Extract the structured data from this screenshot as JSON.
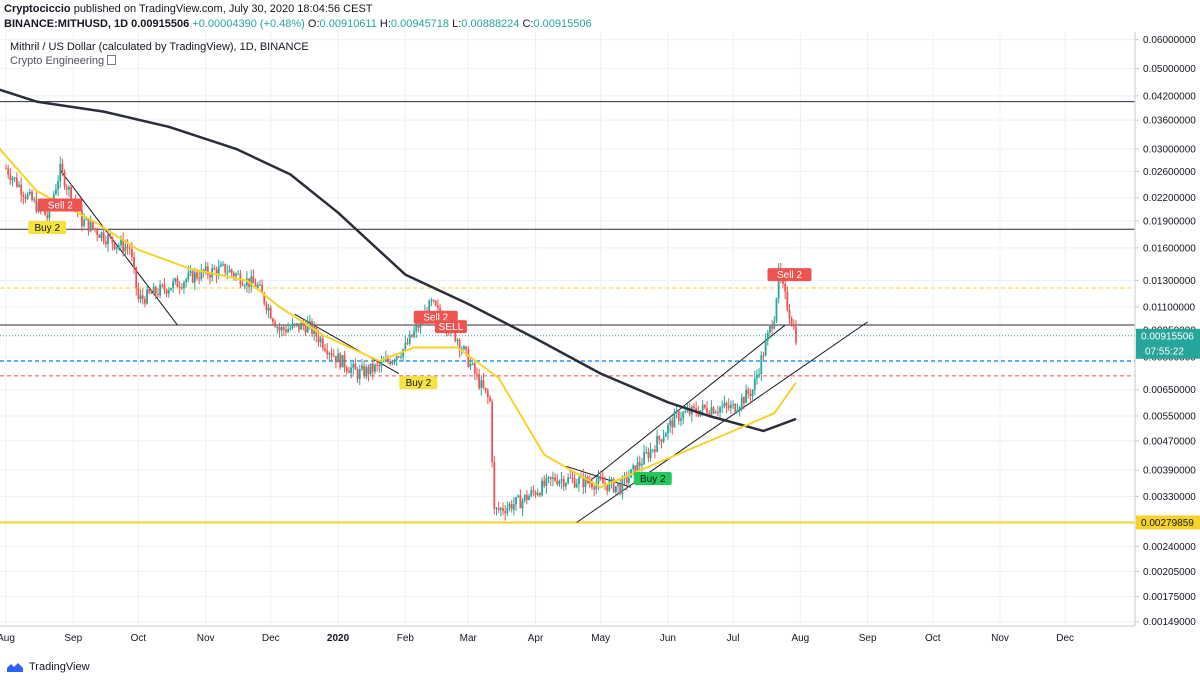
{
  "header": {
    "publisher": "Cryptociccio",
    "published_text": " published on TradingView.com, July 30, 2020 18:04:56 CEST",
    "symbol": "BINANCE:MITHUSD, 1D",
    "price": "0.00915506",
    "change": "+0.00004390 (+0.48%)",
    "o_label": "O:",
    "o_value": "0.00910611",
    "h_label": "H:",
    "h_value": "0.00945718",
    "l_label": "L:",
    "l_value": "0.00888224",
    "c_label": "C:",
    "c_value": "0.00915506"
  },
  "legend": {
    "title": "Mithril / US Dollar (calculated by TradingView), 1D, BINANCE",
    "indicator": "Crypto Engineering"
  },
  "footer": {
    "brand": "TradingView"
  },
  "colors": {
    "up": "#26a69a",
    "down": "#ef5350",
    "ma_fast": "#f5d327",
    "ma_slow": "#2a2e39",
    "grid": "#eef0f3",
    "buy": "#f5e23c",
    "buy_green": "#21c85a",
    "sell": "#ef5350",
    "last_price": "#26a69a",
    "support": "#f7d32a"
  },
  "chart_data": {
    "type": "candlestick",
    "x_axis_labels": [
      "Aug",
      "Sep",
      "Oct",
      "Nov",
      "Dec",
      "2020",
      "Feb",
      "Mar",
      "Apr",
      "May",
      "Jun",
      "Jul",
      "Aug",
      "Sep",
      "Oct",
      "Nov",
      "Dec"
    ],
    "x_axis_bold": [
      "2020"
    ],
    "y_axis": {
      "scale": "log",
      "range": [
        0.00145,
        0.063
      ],
      "ticks": [
        "0.06000000",
        "0.05000000",
        "0.04200000",
        "0.03600000",
        "0.03000000",
        "0.02600000",
        "0.02200000",
        "0.01900000",
        "0.01600000",
        "0.01300000",
        "0.01100000",
        "0.00950000",
        "0.00800000",
        "0.00650000",
        "0.00550000",
        "0.00470000",
        "0.00390000",
        "0.00330000",
        "0.00240000",
        "0.00205000",
        "0.00175000",
        "0.00149000"
      ]
    },
    "date_range": [
      "2019-08-01",
      "2020-07-30"
    ],
    "candles": [
      {
        "date": "2019-08-01",
        "close": 0.0265
      },
      {
        "date": "2019-08-10",
        "close": 0.0225
      },
      {
        "date": "2019-08-20",
        "close": 0.0195
      },
      {
        "date": "2019-08-26",
        "close": 0.0262
      },
      {
        "date": "2019-09-05",
        "close": 0.019
      },
      {
        "date": "2019-09-20",
        "close": 0.0165
      },
      {
        "date": "2019-09-27",
        "close": 0.016
      },
      {
        "date": "2019-10-01",
        "close": 0.0115
      },
      {
        "date": "2019-10-15",
        "close": 0.0125
      },
      {
        "date": "2019-10-28",
        "close": 0.0135
      },
      {
        "date": "2019-11-10",
        "close": 0.014
      },
      {
        "date": "2019-11-25",
        "close": 0.0125
      },
      {
        "date": "2019-12-05",
        "close": 0.0095
      },
      {
        "date": "2019-12-18",
        "close": 0.0098
      },
      {
        "date": "2019-12-31",
        "close": 0.008
      },
      {
        "date": "2020-01-10",
        "close": 0.0072
      },
      {
        "date": "2020-01-20",
        "close": 0.0075
      },
      {
        "date": "2020-02-01",
        "close": 0.0085
      },
      {
        "date": "2020-02-13",
        "close": 0.0112
      },
      {
        "date": "2020-02-25",
        "close": 0.009
      },
      {
        "date": "2020-03-05",
        "close": 0.007
      },
      {
        "date": "2020-03-11",
        "close": 0.006
      },
      {
        "date": "2020-03-13",
        "close": 0.003
      },
      {
        "date": "2020-03-25",
        "close": 0.0032
      },
      {
        "date": "2020-04-10",
        "close": 0.0037
      },
      {
        "date": "2020-04-30",
        "close": 0.0036
      },
      {
        "date": "2020-05-10",
        "close": 0.0035
      },
      {
        "date": "2020-05-25",
        "close": 0.0045
      },
      {
        "date": "2020-06-05",
        "close": 0.0055
      },
      {
        "date": "2020-06-20",
        "close": 0.0058
      },
      {
        "date": "2020-07-01",
        "close": 0.0058
      },
      {
        "date": "2020-07-10",
        "close": 0.0065
      },
      {
        "date": "2020-07-20",
        "close": 0.0105
      },
      {
        "date": "2020-07-22",
        "close": 0.0135
      },
      {
        "date": "2020-07-30",
        "close": 0.00915506
      }
    ],
    "series": [
      {
        "values": [
          {
            "date": "2019-07-25",
            "value": 0.0445
          },
          {
            "date": "2019-08-15",
            "value": 0.0405
          },
          {
            "date": "2019-09-15",
            "value": 0.038
          },
          {
            "date": "2019-10-15",
            "value": 0.0345
          },
          {
            "date": "2019-11-15",
            "value": 0.03
          },
          {
            "date": "2019-12-10",
            "value": 0.0255
          },
          {
            "date": "2020-01-01",
            "value": 0.02
          },
          {
            "date": "2020-02-01",
            "value": 0.0135
          },
          {
            "date": "2020-03-01",
            "value": 0.0112
          },
          {
            "date": "2020-04-01",
            "value": 0.009
          },
          {
            "date": "2020-05-01",
            "value": 0.0072
          },
          {
            "date": "2020-06-01",
            "value": 0.006
          },
          {
            "date": "2020-06-20",
            "value": 0.0055
          },
          {
            "date": "2020-07-05",
            "value": 0.0052
          },
          {
            "date": "2020-07-15",
            "value": 0.005
          },
          {
            "date": "2020-07-30",
            "value": 0.0054
          }
        ]
      },
      {
        "values": [
          {
            "date": "2019-07-25",
            "value": 0.032
          },
          {
            "date": "2019-08-15",
            "value": 0.023
          },
          {
            "date": "2019-09-10",
            "value": 0.019
          },
          {
            "date": "2019-10-01",
            "value": 0.0158
          },
          {
            "date": "2019-10-25",
            "value": 0.014
          },
          {
            "date": "2019-11-20",
            "value": 0.013
          },
          {
            "date": "2019-12-05",
            "value": 0.011
          },
          {
            "date": "2019-12-25",
            "value": 0.0092
          },
          {
            "date": "2020-01-20",
            "value": 0.0078
          },
          {
            "date": "2020-02-05",
            "value": 0.0085
          },
          {
            "date": "2020-02-25",
            "value": 0.0085
          },
          {
            "date": "2020-03-15",
            "value": 0.007
          },
          {
            "date": "2020-04-05",
            "value": 0.0043
          },
          {
            "date": "2020-05-01",
            "value": 0.0035
          },
          {
            "date": "2020-06-01",
            "value": 0.0042
          },
          {
            "date": "2020-07-01",
            "value": 0.005
          },
          {
            "date": "2020-07-20",
            "value": 0.0056
          },
          {
            "date": "2020-07-30",
            "value": 0.0068
          }
        ]
      }
    ],
    "horizontal_lines": [
      {
        "value": 0.0405,
        "style": "solid",
        "color": "#2a2e39"
      },
      {
        "value": 0.018,
        "style": "solid",
        "color": "#2a2e39"
      },
      {
        "value": 0.0098,
        "style": "solid",
        "color": "#2a2e39"
      },
      {
        "value": 0.0124,
        "style": "dashed",
        "color": "#f5d327"
      },
      {
        "value": 0.00915506,
        "style": "dotted",
        "color": "#26a69a"
      },
      {
        "value": 0.0078,
        "style": "dashed",
        "color": "#2196f3"
      },
      {
        "value": 0.0071,
        "style": "dashed",
        "color": "#ef5350"
      },
      {
        "value": 0.00279859,
        "style": "solid",
        "color": "#f7d32a"
      }
    ],
    "trend_lines": [
      {
        "from": {
          "date": "2019-08-26",
          "value": 0.0262
        },
        "to": {
          "date": "2019-10-19",
          "value": 0.0098
        }
      },
      {
        "from": {
          "date": "2019-12-12",
          "value": 0.0105
        },
        "to": {
          "date": "2020-01-29",
          "value": 0.0072
        }
      },
      {
        "from": {
          "date": "2020-04-15",
          "value": 0.004
        },
        "to": {
          "date": "2020-05-15",
          "value": 0.0035
        }
      },
      {
        "from": {
          "date": "2020-04-25",
          "value": 0.0036
        },
        "to": {
          "date": "2020-07-25",
          "value": 0.0098
        }
      },
      {
        "from": {
          "date": "2020-04-20",
          "value": 0.0028
        },
        "to": {
          "date": "2020-09-01",
          "value": 0.01
        }
      }
    ],
    "signals": [
      {
        "date": "2019-08-26",
        "value": 0.021,
        "label": "Sell 2",
        "type": "sell"
      },
      {
        "date": "2019-08-20",
        "value": 0.0182,
        "label": "Buy 2",
        "type": "buy"
      },
      {
        "date": "2020-02-15",
        "value": 0.0103,
        "label": "Sell 2",
        "type": "sell"
      },
      {
        "date": "2020-02-22",
        "value": 0.0097,
        "label": "SELL",
        "type": "sell"
      },
      {
        "date": "2020-02-07",
        "value": 0.0068,
        "label": "Buy 2",
        "type": "buy"
      },
      {
        "date": "2020-05-25",
        "value": 0.0037,
        "label": "Buy 2",
        "type": "buy_green"
      },
      {
        "date": "2020-07-27",
        "value": 0.0135,
        "label": "Sell 2",
        "type": "sell"
      }
    ],
    "price_labels": [
      {
        "value": 0.00915506,
        "text": "0.00915506",
        "sub": "07:55:22",
        "color": "#26a69a"
      },
      {
        "value": 0.00279859,
        "text": "0.00279859",
        "color": "#f7d32a"
      }
    ],
    "grid": true
  }
}
